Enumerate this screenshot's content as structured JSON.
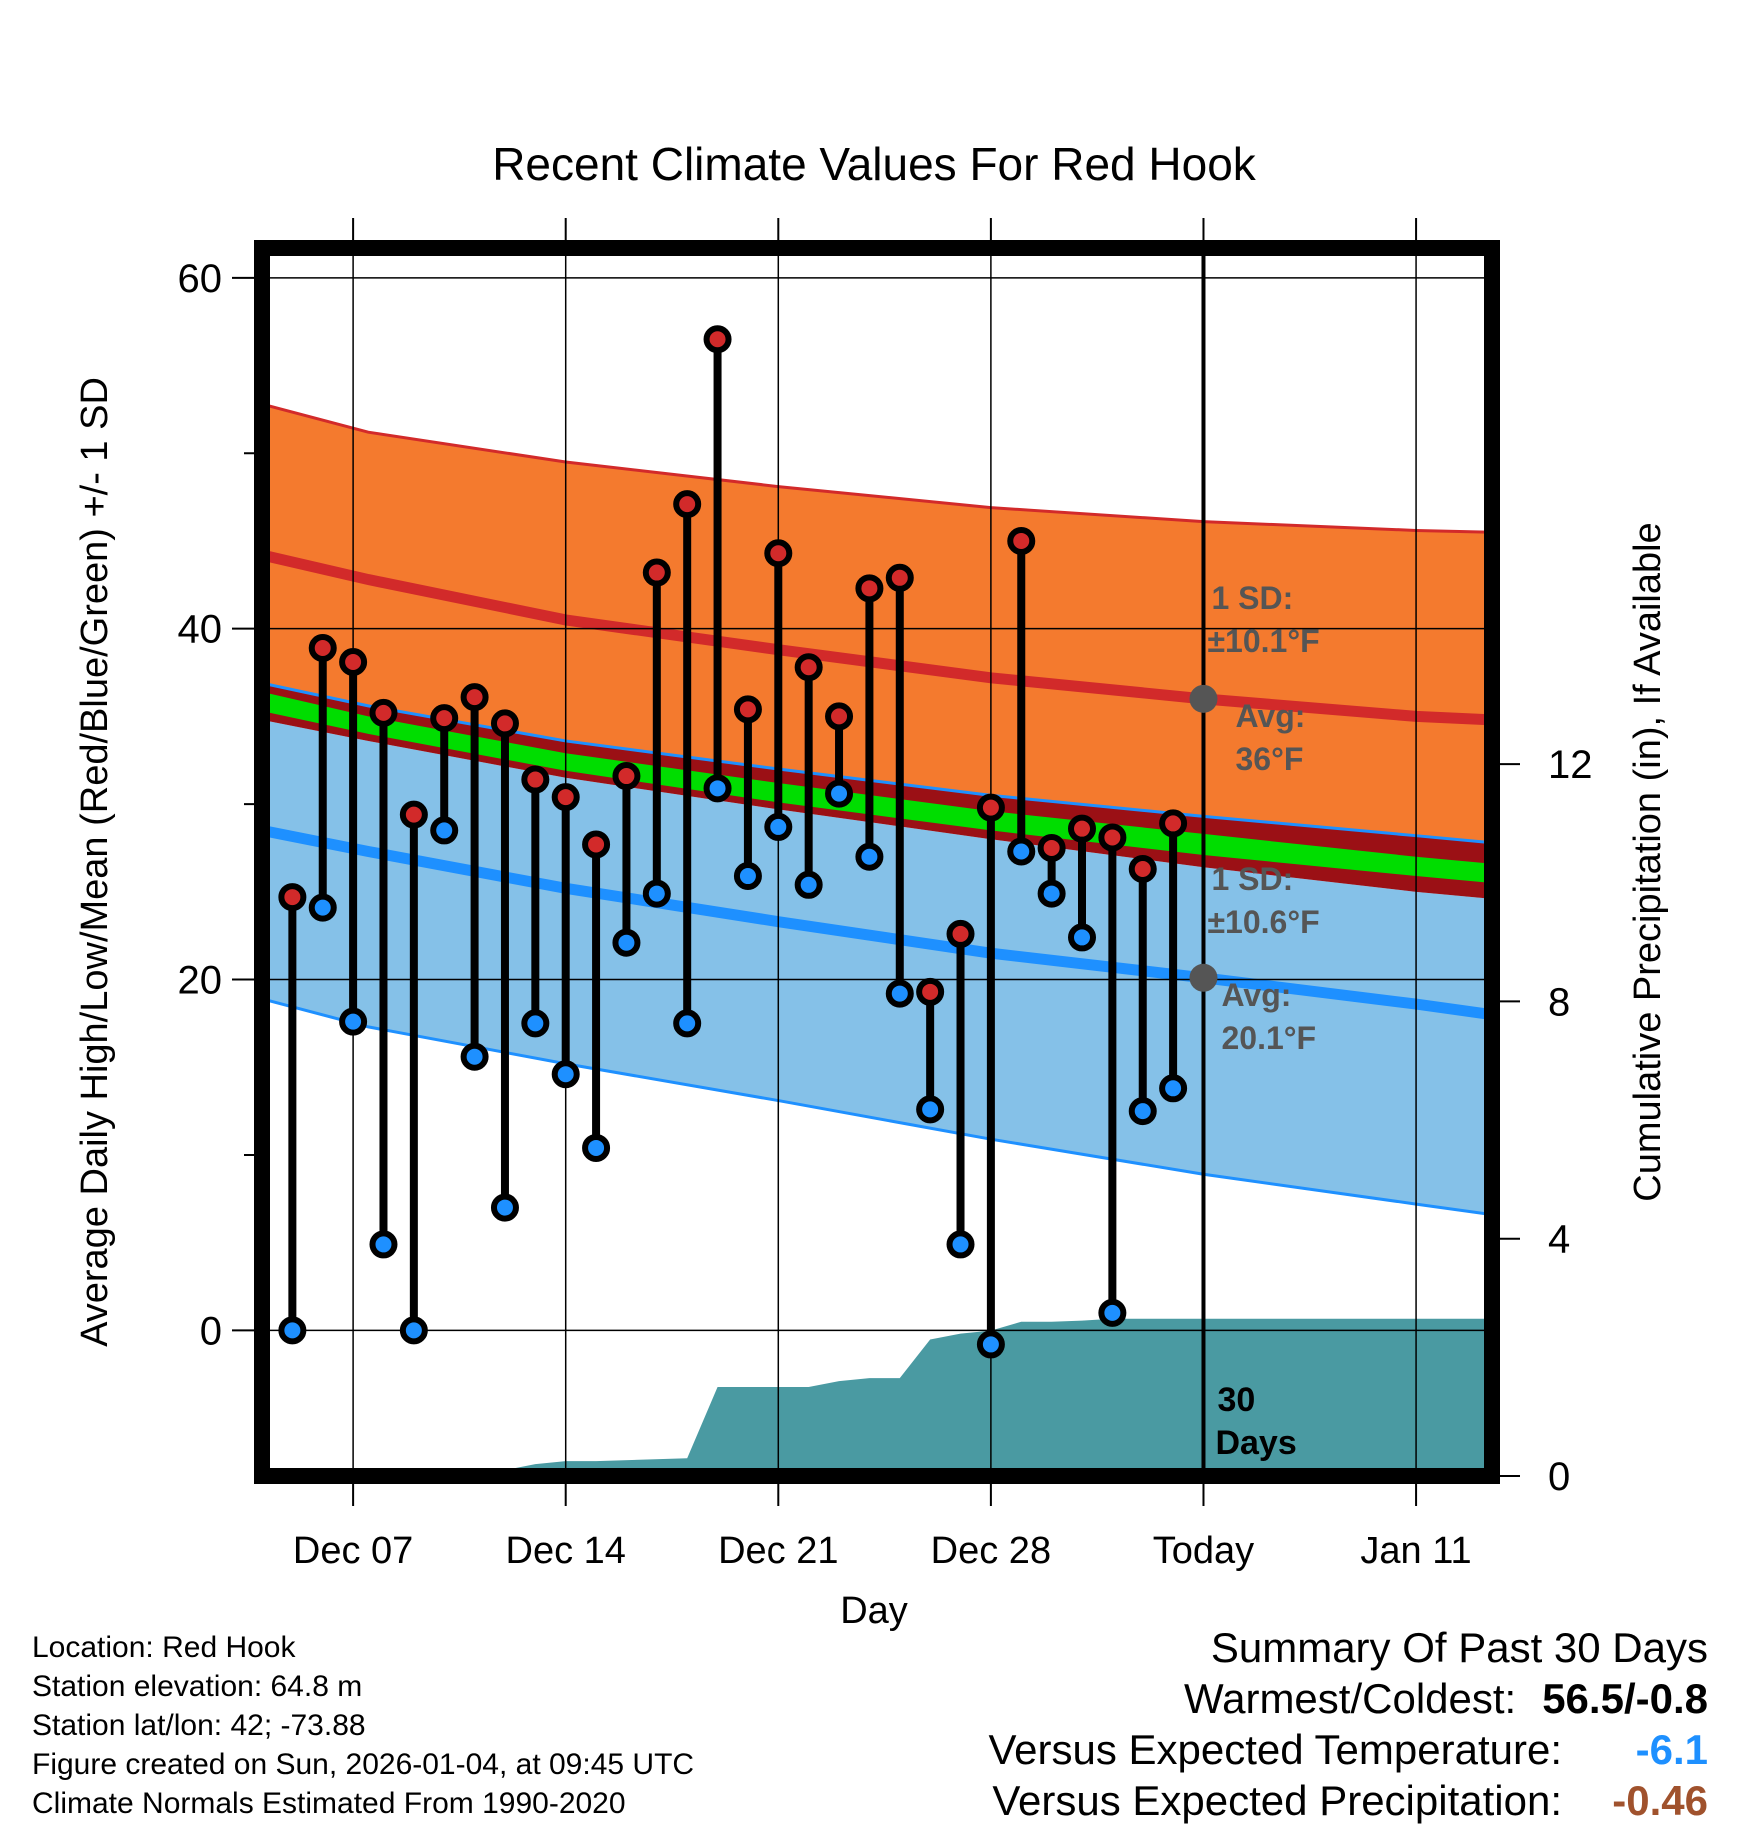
{
  "colors": {
    "high_band": "#f47a2e",
    "high_band_edge": "#d22a2a",
    "high_avg_line": "#d22a2a",
    "low_band": "#85c1e8",
    "low_band_edge": "#1e90ff",
    "low_avg_line": "#1e90ff",
    "mean_band": "#9b1015",
    "mean_line": "#00dd00",
    "precip_fill": "#4a9aa2",
    "high_dot": "#d22a2a",
    "low_dot": "#1e90ff",
    "avg_marker": "#555555",
    "annotation_text": "#555555",
    "versus_temp_color": "#1e90ff",
    "versus_precip_color": "#a0522d"
  },
  "chart_data": {
    "type": "range-dot",
    "title": "Recent Climate Values For Red Hook",
    "xlabel": "Day",
    "ylabel": "Average Daily High/Low/Mean (Red/Blue/Green) +/- 1 SD",
    "y2label": "Cumulative Precipitation (in), If Available",
    "x_range_days": [
      0,
      40.5
    ],
    "ylim": [
      -8.3,
      61.7
    ],
    "y_ticks": [
      0,
      20,
      40,
      60
    ],
    "y_minor_ticks": [
      10,
      30,
      50
    ],
    "y2lim": [
      0,
      20.7
    ],
    "y2_ticks": [
      0,
      4,
      8,
      12
    ],
    "x_ticks": [
      {
        "day": 3,
        "label": "Dec 07"
      },
      {
        "day": 10,
        "label": "Dec 14"
      },
      {
        "day": 17,
        "label": "Dec 21"
      },
      {
        "day": 24,
        "label": "Dec 28"
      },
      {
        "day": 31,
        "label": "Today"
      },
      {
        "day": 38,
        "label": "Jan 11"
      }
    ],
    "today_day": 31,
    "days_label": "30 Days",
    "normals_days": [
      0,
      3.5,
      10,
      17,
      24,
      31,
      38,
      40.5
    ],
    "normal_high": [
      44.2,
      42.8,
      40.5,
      38.8,
      37.2,
      36.0,
      35.0,
      34.8
    ],
    "normal_high_upper": [
      52.8,
      51.2,
      49.5,
      48.1,
      46.9,
      46.1,
      45.6,
      45.5
    ],
    "normal_low": [
      28.5,
      27.3,
      25.2,
      23.3,
      21.5,
      20.1,
      18.6,
      18.0
    ],
    "normal_low_lower": [
      18.9,
      17.3,
      15.2,
      13.1,
      10.9,
      8.9,
      7.2,
      6.6
    ],
    "normal_mean_upper": [
      36.4,
      35.0,
      32.9,
      31.2,
      29.6,
      28.3,
      27.0,
      26.6
    ],
    "normal_mean_lower": [
      35.3,
      34.0,
      31.9,
      30.1,
      28.5,
      27.1,
      25.9,
      25.5
    ],
    "high_band_lower": [
      36.9,
      35.6,
      33.6,
      32.0,
      30.5,
      29.3,
      28.2,
      27.8
    ],
    "low_band_upper": [
      34.8,
      33.6,
      31.5,
      29.7,
      28.0,
      26.4,
      25.0,
      24.6
    ],
    "annotations": [
      {
        "text1": "1 SD:",
        "text2": "±10.1°F",
        "avg1": "Avg:",
        "avg2": "36°F",
        "avg_value": 36.0
      },
      {
        "text1": "1 SD:",
        "text2": "±10.6°F",
        "avg1": "Avg:",
        "avg2": "20.1°F",
        "avg_value": 20.1
      }
    ],
    "series": [
      {
        "name": "Daily High/Low",
        "days": [
          1,
          2,
          3,
          4,
          5,
          6,
          7,
          8,
          9,
          10,
          11,
          12,
          13,
          14,
          15,
          16,
          17,
          18,
          19,
          20,
          21,
          22,
          23,
          24,
          25,
          26,
          27,
          28,
          29,
          30
        ],
        "high": [
          24.7,
          38.9,
          38.1,
          35.2,
          29.4,
          34.9,
          36.1,
          34.6,
          31.4,
          30.4,
          27.7,
          31.6,
          43.2,
          47.1,
          56.5,
          35.4,
          44.3,
          37.8,
          35.0,
          42.3,
          42.9,
          19.3,
          22.6,
          29.8,
          45.0,
          27.5,
          28.6,
          28.1,
          26.3,
          28.9
        ],
        "low": [
          0.0,
          24.1,
          17.6,
          4.9,
          0.0,
          28.5,
          15.6,
          7.0,
          17.5,
          14.6,
          10.4,
          22.1,
          24.9,
          17.5,
          30.9,
          25.9,
          28.7,
          25.4,
          30.6,
          27.0,
          19.2,
          12.6,
          4.9,
          -0.8,
          27.3,
          24.9,
          22.4,
          1.0,
          12.5,
          13.8
        ]
      },
      {
        "name": "Cumulative Precipitation (in)",
        "days": [
          0,
          4,
          5,
          8,
          9,
          10,
          11,
          14,
          15,
          18,
          19,
          20,
          21,
          22,
          23,
          24,
          25,
          26,
          27,
          28,
          29,
          30,
          31,
          32,
          40.5
        ],
        "values": [
          0,
          0,
          0.05,
          0.1,
          0.2,
          0.25,
          0.25,
          0.3,
          1.5,
          1.5,
          1.6,
          1.65,
          1.65,
          2.3,
          2.4,
          2.45,
          2.6,
          2.6,
          2.62,
          2.65,
          2.65,
          2.65,
          2.65,
          2.65,
          2.65
        ]
      }
    ]
  },
  "info": {
    "location": "Location: Red Hook",
    "elevation": "Station elevation: 64.8 m",
    "latlon": "Station lat/lon: 42; -73.88",
    "created": "Figure created on Sun, 2026-01-04, at 09:45 UTC",
    "normals": "Climate Normals Estimated From 1990-2020"
  },
  "summary": {
    "title": "Summary Of Past 30 Days",
    "warmest_label": "Warmest/Coldest:",
    "warmest_value": "56.5/-0.8",
    "temp_label": "Versus Expected Temperature:",
    "temp_value": "-6.1",
    "precip_label": "Versus Expected Precipitation:",
    "precip_value": "-0.46"
  }
}
